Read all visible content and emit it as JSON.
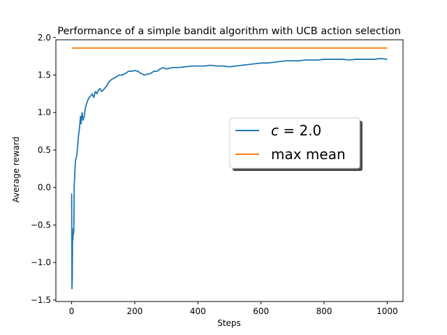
{
  "chart_data": {
    "type": "line",
    "title": "Performance of a simple bandit algorithm with UCB action selection",
    "xlabel": "Steps",
    "ylabel": "Average reward",
    "xlim": [
      -50,
      1050
    ],
    "ylim": [
      -1.52,
      1.97
    ],
    "x_ticks": [
      0,
      200,
      400,
      600,
      800,
      1000
    ],
    "y_ticks": [
      -1.5,
      -1.0,
      -0.5,
      0.0,
      0.5,
      1.0,
      1.5,
      2.0
    ],
    "x_tick_labels": [
      "0",
      "200",
      "400",
      "600",
      "800",
      "1000"
    ],
    "y_tick_labels": [
      "−1.5",
      "−1.0",
      "−0.5",
      "0.0",
      "0.5",
      "1.0",
      "1.5",
      "2.0"
    ],
    "grid": false,
    "legend_position": "center-right",
    "series": [
      {
        "name": "c = 2.0",
        "color": "#1f77b4",
        "x": [
          0,
          1,
          2,
          3,
          4,
          5,
          6,
          7,
          8,
          10,
          12,
          14,
          16,
          18,
          20,
          22,
          25,
          28,
          30,
          33,
          36,
          40,
          43,
          46,
          50,
          55,
          60,
          65,
          70,
          75,
          80,
          85,
          90,
          95,
          100,
          110,
          120,
          130,
          140,
          150,
          160,
          170,
          180,
          190,
          200,
          210,
          220,
          230,
          240,
          250,
          260,
          270,
          280,
          290,
          300,
          320,
          340,
          360,
          380,
          400,
          420,
          440,
          460,
          480,
          500,
          520,
          540,
          560,
          580,
          600,
          620,
          640,
          660,
          680,
          700,
          720,
          740,
          760,
          780,
          800,
          820,
          840,
          860,
          880,
          900,
          920,
          940,
          960,
          980,
          1000
        ],
        "y": [
          -0.08,
          -1.35,
          -1.2,
          -0.6,
          -0.7,
          -0.55,
          -0.62,
          -0.55,
          0.0,
          0.2,
          0.35,
          0.4,
          0.42,
          0.5,
          0.6,
          0.7,
          0.8,
          0.95,
          0.85,
          1.0,
          0.9,
          0.95,
          1.05,
          1.1,
          1.15,
          1.2,
          1.22,
          1.25,
          1.2,
          1.28,
          1.25,
          1.3,
          1.32,
          1.28,
          1.3,
          1.35,
          1.42,
          1.45,
          1.47,
          1.5,
          1.5,
          1.52,
          1.55,
          1.55,
          1.56,
          1.55,
          1.52,
          1.5,
          1.51,
          1.52,
          1.55,
          1.55,
          1.58,
          1.6,
          1.58,
          1.6,
          1.6,
          1.61,
          1.62,
          1.62,
          1.62,
          1.63,
          1.62,
          1.62,
          1.61,
          1.62,
          1.63,
          1.64,
          1.65,
          1.66,
          1.66,
          1.67,
          1.68,
          1.69,
          1.69,
          1.69,
          1.7,
          1.7,
          1.7,
          1.71,
          1.71,
          1.71,
          1.71,
          1.7,
          1.71,
          1.71,
          1.71,
          1.71,
          1.72,
          1.71
        ]
      },
      {
        "name": "max mean",
        "color": "#ff7f0e",
        "x": [
          0,
          1000
        ],
        "y": [
          1.86,
          1.86
        ]
      }
    ]
  },
  "legend": {
    "entries": [
      {
        "label_var": "c",
        "label_rest": " = 2.0",
        "color": "#1f77b4"
      },
      {
        "label": "max mean",
        "color": "#ff7f0e"
      }
    ]
  }
}
